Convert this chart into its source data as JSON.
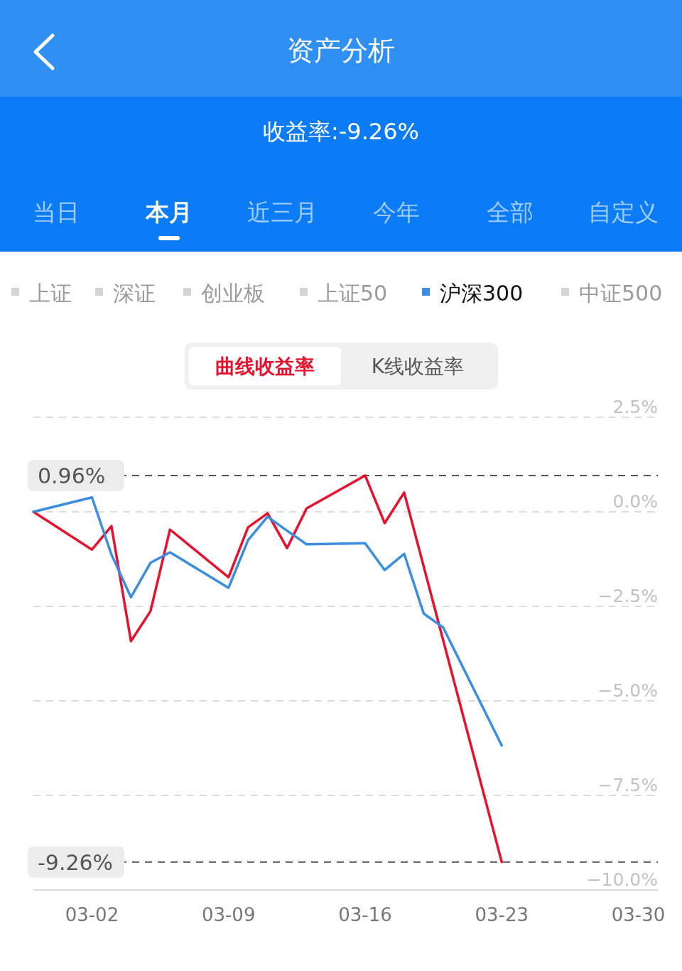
{
  "chart_data": {
    "type": "line",
    "title": "资产分析",
    "subtitle": "收益率:-9.26%",
    "annotations": [
      "当日",
      "本月",
      "近三月",
      "今年",
      "全部",
      "自定义",
      "上证",
      "深证",
      "创业板",
      "上证50",
      "中证500",
      "曲线收益率",
      "K线收益率"
    ],
    "x": [
      "--02-27",
      "--03-02",
      "--03-03",
      "--03-04",
      "--03-05",
      "--03-06",
      "--03-09",
      "--03-10",
      "--03-11",
      "--03-12",
      "--03-13",
      "--03-16",
      "--03-17",
      "--03-18",
      "--03-19",
      "--03-20",
      "--03-23"
    ],
    "series": [
      {
        "color": "#e8112d",
        "x": [
          "--02-27",
          "--03-02",
          "--03-03",
          "--03-04",
          "--03-05",
          "--03-06",
          "--03-09",
          "--03-10",
          "--03-11",
          "--03-12",
          "--03-13",
          "--03-16",
          "--03-17",
          "--03-18",
          "--03-23"
        ],
        "values": [
          0,
          -1.0,
          -0.38,
          -3.42,
          -2.63,
          -0.47,
          -1.73,
          -0.41,
          -0.04,
          -0.96,
          0.09,
          0.96,
          -0.3,
          0.51,
          -9.26
        ]
      },
      {
        "name": "沪深300",
        "color": "#3b8de0",
        "values": [
          0,
          0.38,
          -1.13,
          -2.26,
          -1.35,
          -1.07,
          -2.01,
          -0.75,
          -0.13,
          -0.5,
          -0.86,
          -0.83,
          -1.54,
          -1.11,
          -2.69,
          -3.06,
          -6.18
        ]
      }
    ],
    "xlim": [
      "--02-27",
      "--03-31"
    ],
    "xticks": [
      {
        "value": "--03-02",
        "label": "03-02"
      },
      {
        "value": "--03-09",
        "label": "03-09"
      },
      {
        "value": "--03-16",
        "label": "03-16"
      },
      {
        "value": "--03-23",
        "label": "03-23"
      },
      {
        "value": "--03-30",
        "label": "03-30"
      }
    ],
    "ylim": [
      -10,
      2.5
    ],
    "yticks": [
      {
        "value": 2.5,
        "label": "2.5%"
      },
      {
        "value": 0,
        "label": "0.0%"
      },
      {
        "value": -2.5,
        "label": "−2.5%"
      },
      {
        "value": -5,
        "label": "−5.0%"
      },
      {
        "value": -7.5,
        "label": "−7.5%"
      },
      {
        "value": -10,
        "label": "−10.0%"
      }
    ],
    "ref_lines": [
      {
        "axis": "y",
        "value": 0.96,
        "label": "0.96%",
        "color": "#555555",
        "line_style": "dashed"
      },
      {
        "axis": "y",
        "value": -9.26,
        "label": "-9.26%",
        "color": "#555555",
        "line_style": "dashed"
      }
    ],
    "grid": "y",
    "legend": "top",
    "marker": "none",
    "line_style": "solid"
  }
}
